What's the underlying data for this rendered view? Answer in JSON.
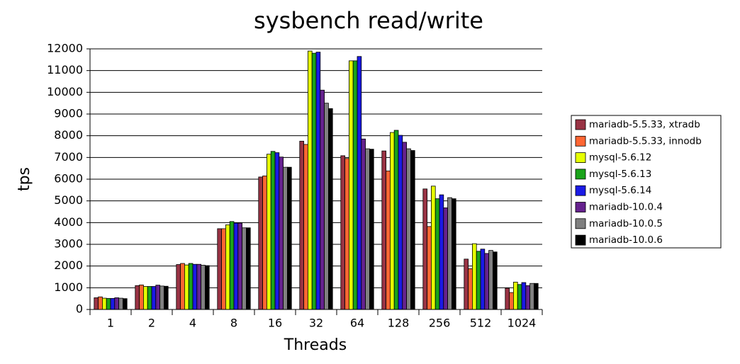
{
  "chart_data": {
    "type": "bar",
    "title": "sysbench read/write",
    "x_label": "Threads",
    "y_label": "tps",
    "categories": [
      "1",
      "2",
      "4",
      "8",
      "16",
      "32",
      "64",
      "128",
      "256",
      "512",
      "1024"
    ],
    "series": [
      {
        "name": "mariadb-5.5.33, xtradb",
        "color": "#993344",
        "values": [
          540,
          1100,
          2070,
          3720,
          6100,
          7750,
          7080,
          7300,
          5550,
          2320,
          980
        ]
      },
      {
        "name": "mariadb-5.5.33, innodb",
        "color": "#ff6633",
        "values": [
          580,
          1130,
          2120,
          3720,
          6150,
          7600,
          6950,
          6380,
          3820,
          1880,
          780
        ]
      },
      {
        "name": "mysql-5.6.12",
        "color": "#e6ff00",
        "values": [
          520,
          1060,
          2050,
          3900,
          7150,
          11900,
          11450,
          8150,
          5680,
          3030,
          1260
        ]
      },
      {
        "name": "mysql-5.6.13",
        "color": "#1aa31a",
        "values": [
          510,
          1060,
          2120,
          4050,
          7280,
          11800,
          11450,
          8250,
          5100,
          2680,
          1150
        ]
      },
      {
        "name": "mysql-5.6.14",
        "color": "#1a1ae6",
        "values": [
          510,
          1060,
          2080,
          3980,
          7220,
          11850,
          11650,
          8020,
          5280,
          2780,
          1240
        ]
      },
      {
        "name": "mariadb-10.0.4",
        "color": "#66228e",
        "values": [
          540,
          1120,
          2080,
          3980,
          7020,
          10100,
          7850,
          7700,
          4680,
          2580,
          1100
        ]
      },
      {
        "name": "mariadb-10.0.5",
        "color": "#808080",
        "values": [
          520,
          1080,
          2040,
          3760,
          6550,
          9500,
          7400,
          7400,
          5150,
          2720,
          1200
        ]
      },
      {
        "name": "mariadb-10.0.6",
        "color": "#000000",
        "values": [
          500,
          1070,
          2020,
          3760,
          6550,
          9250,
          7380,
          7320,
          5100,
          2650,
          1200
        ]
      }
    ],
    "ylim": [
      0,
      12000
    ],
    "yticks": [
      0,
      1000,
      2000,
      3000,
      4000,
      5000,
      6000,
      7000,
      8000,
      9000,
      10000,
      11000,
      12000
    ],
    "grid": true,
    "legend": "right"
  }
}
